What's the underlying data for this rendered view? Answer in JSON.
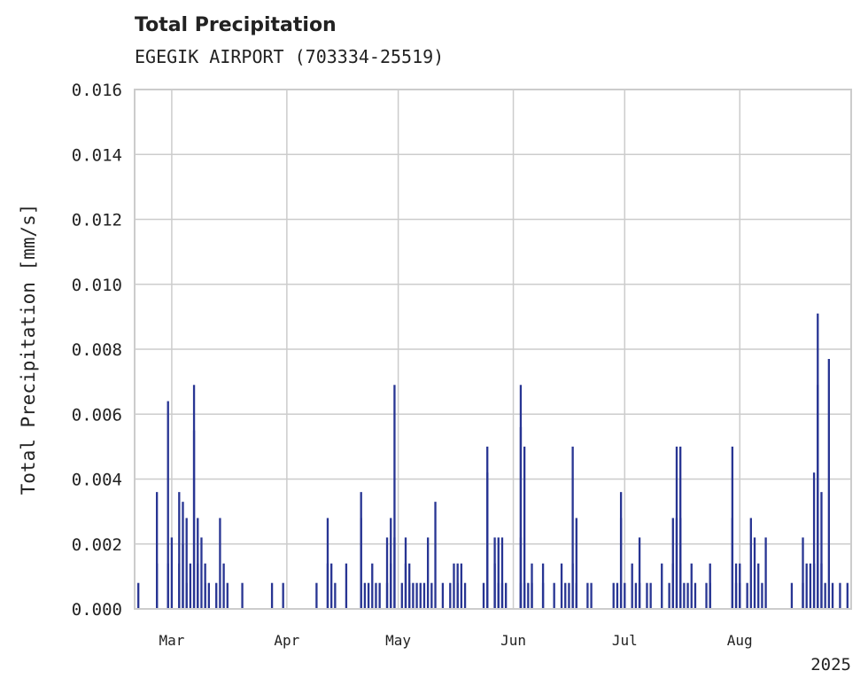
{
  "chart_data": {
    "type": "bar",
    "title": "Total Precipitation",
    "subtitle": "EGEGIK AIRPORT (703334-25519)",
    "xlabel": "",
    "ylabel": "Total Precipitation [mm/s]",
    "ylim": [
      0,
      0.016
    ],
    "yticks": [
      "0.000",
      "0.002",
      "0.004",
      "0.006",
      "0.008",
      "0.010",
      "0.012",
      "0.014",
      "0.016"
    ],
    "xlim": [
      "2025-02-19",
      "2025-08-31"
    ],
    "xticks": [
      {
        "date": "2025-03-01",
        "label": "Mar"
      },
      {
        "date": "2025-04-01",
        "label": "Apr"
      },
      {
        "date": "2025-05-01",
        "label": "May"
      },
      {
        "date": "2025-06-01",
        "label": "Jun"
      },
      {
        "date": "2025-07-01",
        "label": "Jul"
      },
      {
        "date": "2025-08-01",
        "label": "Aug"
      }
    ],
    "year_label": "2025",
    "grid": true,
    "color": "#283593",
    "series": [
      {
        "values": [
          [
            "2025-02-20",
            0.0008
          ],
          [
            "2025-02-25",
            0.0036
          ],
          [
            "2025-02-25",
            0.0014
          ],
          [
            "2025-02-28",
            0.0014
          ],
          [
            "2025-02-28",
            0.0064
          ],
          [
            "2025-03-01",
            0.0022
          ],
          [
            "2025-03-03",
            0.0014
          ],
          [
            "2025-03-03",
            0.0036
          ],
          [
            "2025-03-04",
            0.0033
          ],
          [
            "2025-03-04",
            0.002
          ],
          [
            "2025-03-05",
            0.0008
          ],
          [
            "2025-03-05",
            0.0028
          ],
          [
            "2025-03-06",
            0.0014
          ],
          [
            "2025-03-07",
            0.0055
          ],
          [
            "2025-03-07",
            0.0069
          ],
          [
            "2025-03-08",
            0.0028
          ],
          [
            "2025-03-08",
            0.0014
          ],
          [
            "2025-03-09",
            0.0022
          ],
          [
            "2025-03-10",
            0.0014
          ],
          [
            "2025-03-10",
            0.0008
          ],
          [
            "2025-03-11",
            0.0008
          ],
          [
            "2025-03-13",
            0.0008
          ],
          [
            "2025-03-14",
            0.0028
          ],
          [
            "2025-03-15",
            0.0014
          ],
          [
            "2025-03-16",
            0.0008
          ],
          [
            "2025-03-20",
            0.0008
          ],
          [
            "2025-03-28",
            0.0008
          ],
          [
            "2025-03-31",
            0.0008
          ],
          [
            "2025-04-09",
            0.0008
          ],
          [
            "2025-04-12",
            0.0028
          ],
          [
            "2025-04-12",
            0.0014
          ],
          [
            "2025-04-13",
            0.0014
          ],
          [
            "2025-04-14",
            0.0008
          ],
          [
            "2025-04-17",
            0.0014
          ],
          [
            "2025-04-21",
            0.0028
          ],
          [
            "2025-04-21",
            0.0036
          ],
          [
            "2025-04-22",
            0.0008
          ],
          [
            "2025-04-23",
            0.0008
          ],
          [
            "2025-04-24",
            0.0014
          ],
          [
            "2025-04-25",
            0.0008
          ],
          [
            "2025-04-26",
            0.0008
          ],
          [
            "2025-04-28",
            0.0022
          ],
          [
            "2025-04-28",
            0.0008
          ],
          [
            "2025-04-29",
            0.0028
          ],
          [
            "2025-04-29",
            0.0014
          ],
          [
            "2025-04-30",
            0.0069
          ],
          [
            "2025-04-30",
            0.0022
          ],
          [
            "2025-05-02",
            0.0008
          ],
          [
            "2025-05-03",
            0.0022
          ],
          [
            "2025-05-03",
            0.0014
          ],
          [
            "2025-05-04",
            0.0008
          ],
          [
            "2025-05-04",
            0.0014
          ],
          [
            "2025-05-05",
            0.0008
          ],
          [
            "2025-05-06",
            0.0008
          ],
          [
            "2025-05-07",
            0.0008
          ],
          [
            "2025-05-08",
            0.0008
          ],
          [
            "2025-05-09",
            0.0022
          ],
          [
            "2025-05-10",
            0.0008
          ],
          [
            "2025-05-11",
            0.0033
          ],
          [
            "2025-05-13",
            0.0008
          ],
          [
            "2025-05-15",
            0.0008
          ],
          [
            "2025-05-16",
            0.0014
          ],
          [
            "2025-05-17",
            0.0014
          ],
          [
            "2025-05-17",
            0.0008
          ],
          [
            "2025-05-18",
            0.0014
          ],
          [
            "2025-05-19",
            0.0008
          ],
          [
            "2025-05-24",
            0.0008
          ],
          [
            "2025-05-25",
            0.005
          ],
          [
            "2025-05-25",
            0.0042
          ],
          [
            "2025-05-27",
            0.0022
          ],
          [
            "2025-05-27",
            0.0014
          ],
          [
            "2025-05-28",
            0.0022
          ],
          [
            "2025-05-28",
            0.0008
          ],
          [
            "2025-05-29",
            0.0022
          ],
          [
            "2025-05-29",
            0.0008
          ],
          [
            "2025-05-30",
            0.0008
          ],
          [
            "2025-06-03",
            0.0008
          ],
          [
            "2025-06-03",
            0.0022
          ],
          [
            "2025-06-03",
            0.0056
          ],
          [
            "2025-06-03",
            0.0069
          ],
          [
            "2025-06-04",
            0.005
          ],
          [
            "2025-06-04",
            0.0008
          ],
          [
            "2025-06-05",
            0.0008
          ],
          [
            "2025-06-06",
            0.0014
          ],
          [
            "2025-06-06",
            0.0008
          ],
          [
            "2025-06-09",
            0.0014
          ],
          [
            "2025-06-09",
            0.0008
          ],
          [
            "2025-06-12",
            0.0008
          ],
          [
            "2025-06-14",
            0.0014
          ],
          [
            "2025-06-15",
            0.0008
          ],
          [
            "2025-06-16",
            0.0008
          ],
          [
            "2025-06-17",
            0.0014
          ],
          [
            "2025-06-17",
            0.005
          ],
          [
            "2025-06-18",
            0.0028
          ],
          [
            "2025-06-18",
            0.0008
          ],
          [
            "2025-06-21",
            0.0008
          ],
          [
            "2025-06-22",
            0.0008
          ],
          [
            "2025-06-28",
            0.0008
          ],
          [
            "2025-06-29",
            0.0008
          ],
          [
            "2025-06-30",
            0.0036
          ],
          [
            "2025-06-30",
            0.0028
          ],
          [
            "2025-07-01",
            0.0008
          ],
          [
            "2025-07-03",
            0.0014
          ],
          [
            "2025-07-04",
            0.0008
          ],
          [
            "2025-07-05",
            0.0022
          ],
          [
            "2025-07-05",
            0.0008
          ],
          [
            "2025-07-07",
            0.0008
          ],
          [
            "2025-07-08",
            0.0008
          ],
          [
            "2025-07-11",
            0.0014
          ],
          [
            "2025-07-13",
            0.0008
          ],
          [
            "2025-07-14",
            0.0028
          ],
          [
            "2025-07-14",
            0.0014
          ],
          [
            "2025-07-15",
            0.0028
          ],
          [
            "2025-07-15",
            0.005
          ],
          [
            "2025-07-16",
            0.005
          ],
          [
            "2025-07-16",
            0.0028
          ],
          [
            "2025-07-16",
            0.0014
          ],
          [
            "2025-07-17",
            0.0008
          ],
          [
            "2025-07-18",
            0.0008
          ],
          [
            "2025-07-19",
            0.0014
          ],
          [
            "2025-07-20",
            0.0008
          ],
          [
            "2025-07-23",
            0.0008
          ],
          [
            "2025-07-24",
            0.0014
          ],
          [
            "2025-07-24",
            0.0008
          ],
          [
            "2025-07-30",
            0.005
          ],
          [
            "2025-07-30",
            0.0028
          ],
          [
            "2025-07-31",
            0.0014
          ],
          [
            "2025-07-31",
            0.0008
          ],
          [
            "2025-08-01",
            0.0008
          ],
          [
            "2025-08-01",
            0.0014
          ],
          [
            "2025-08-03",
            0.0008
          ],
          [
            "2025-08-04",
            0.0028
          ],
          [
            "2025-08-05",
            0.0022
          ],
          [
            "2025-08-06",
            0.0014
          ],
          [
            "2025-08-07",
            0.0008
          ],
          [
            "2025-08-08",
            0.0022
          ],
          [
            "2025-08-15",
            0.0008
          ],
          [
            "2025-08-18",
            0.0022
          ],
          [
            "2025-08-18",
            0.0008
          ],
          [
            "2025-08-19",
            0.0014
          ],
          [
            "2025-08-20",
            0.0014
          ],
          [
            "2025-08-21",
            0.0014
          ],
          [
            "2025-08-21",
            0.0042
          ],
          [
            "2025-08-22",
            0.0091
          ],
          [
            "2025-08-22",
            0.0069
          ],
          [
            "2025-08-23",
            0.0036
          ],
          [
            "2025-08-23",
            0.0014
          ],
          [
            "2025-08-24",
            0.0008
          ],
          [
            "2025-08-25",
            0.0077
          ],
          [
            "2025-08-26",
            0.0008
          ],
          [
            "2025-08-28",
            0.0008
          ],
          [
            "2025-08-30",
            0.0008
          ]
        ]
      }
    ]
  }
}
